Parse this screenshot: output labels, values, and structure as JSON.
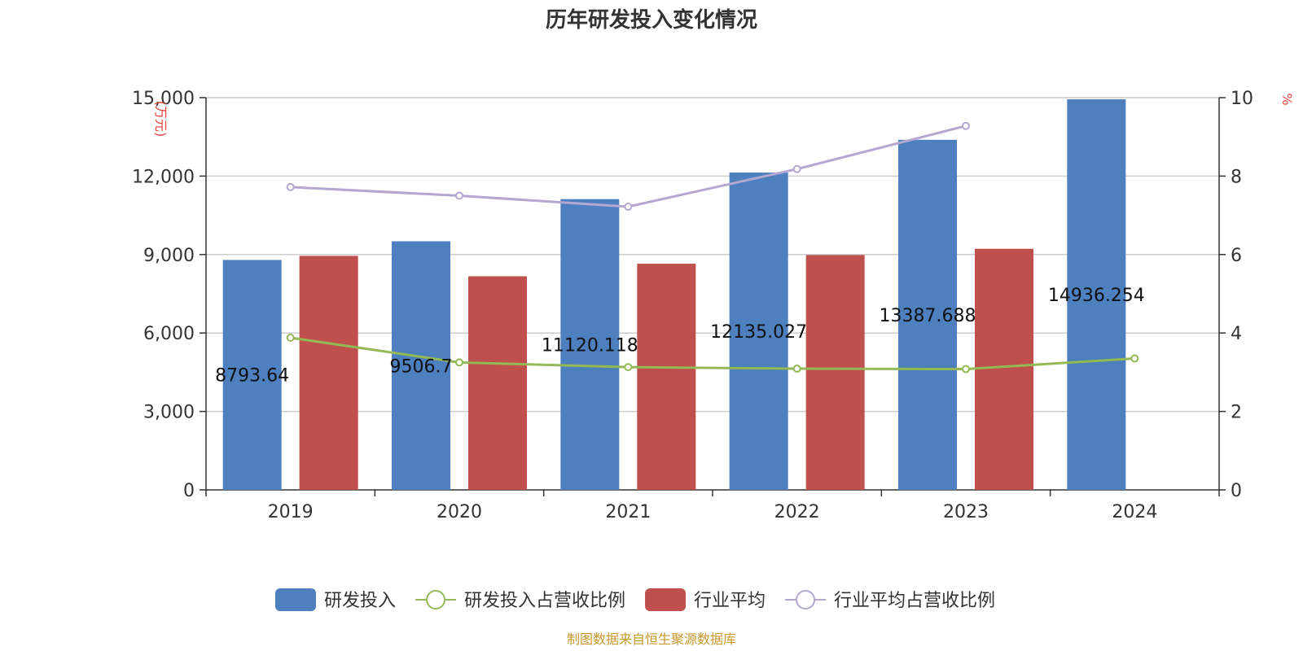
{
  "chart_data": {
    "type": "bar",
    "title": "历年研发投入变化情况",
    "categories": [
      "2019",
      "2020",
      "2021",
      "2022",
      "2023",
      "2024"
    ],
    "y_left": {
      "unit": "(万元)",
      "ylim": [
        0,
        15000
      ],
      "ticks": [
        "0",
        "3,000",
        "6,000",
        "9,000",
        "12,000",
        "15,000"
      ],
      "tick_values": [
        0,
        3000,
        6000,
        9000,
        12000,
        15000
      ]
    },
    "y_right": {
      "unit": "%",
      "ylim": [
        0,
        10
      ],
      "ticks": [
        "0",
        "2",
        "4",
        "6",
        "8",
        "10"
      ],
      "tick_values": [
        0,
        2,
        4,
        6,
        8,
        10
      ]
    },
    "series": [
      {
        "name": "研发投入",
        "kind": "bar",
        "axis": "left",
        "color": "#4e7fbe",
        "values": [
          8793.64,
          9506.7,
          11120.118,
          12135.027,
          13387.688,
          14936.254
        ],
        "labels": [
          "8793.64",
          "9506.7",
          "11120.118",
          "12135.027",
          "13387.688",
          "14936.254"
        ]
      },
      {
        "name": "研发投入占营收比例",
        "kind": "line",
        "axis": "right",
        "color": "#94b956",
        "values": [
          3.88,
          3.25,
          3.13,
          3.09,
          3.08,
          3.35
        ]
      },
      {
        "name": "行业平均",
        "kind": "bar",
        "axis": "left",
        "color": "#c0504d",
        "values": [
          8950,
          8170,
          8650,
          8980,
          9220,
          null
        ]
      },
      {
        "name": "行业平均占营收比例",
        "kind": "line",
        "axis": "right",
        "color": "#b4a7d0",
        "values": [
          7.72,
          7.5,
          7.22,
          8.18,
          9.28,
          null
        ]
      }
    ],
    "grid": true,
    "legend_position": "bottom",
    "source_note": "制图数据来自恒生聚源数据库"
  }
}
